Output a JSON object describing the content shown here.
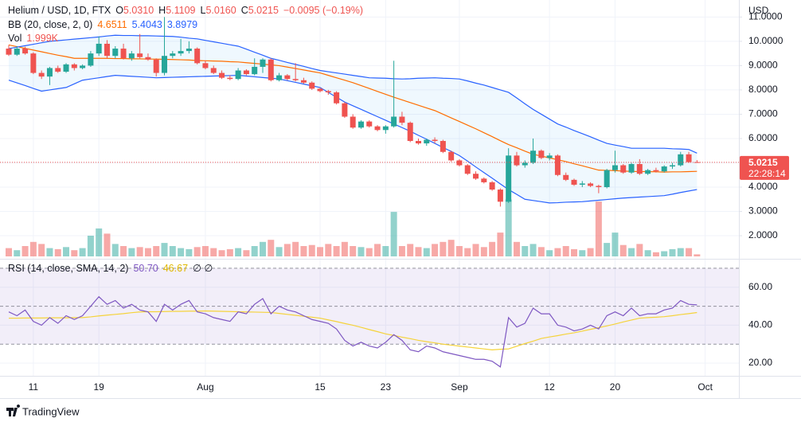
{
  "chart_data": {
    "type": "candlestick",
    "header": {
      "symbol": "Helium / USD, 1D, FTX",
      "ohlc": [
        {
          "label": "O",
          "value": "5.0310"
        },
        {
          "label": "H",
          "value": "5.1109"
        },
        {
          "label": "L",
          "value": "5.0160"
        },
        {
          "label": "C",
          "value": "5.0215"
        }
      ],
      "change": "−0.0095 (−0.19%)"
    },
    "currency": "USD",
    "last_price_label": "5.0215",
    "countdown": "22:28:14",
    "up_color": "#26a69a",
    "down_color": "#ef5350",
    "categories": [
      null,
      null,
      null,
      "11",
      null,
      null,
      null,
      null,
      null,
      null,
      null,
      "19",
      null,
      null,
      null,
      null,
      null,
      null,
      null,
      null,
      null,
      null,
      null,
      null,
      "Aug",
      null,
      null,
      null,
      null,
      null,
      null,
      null,
      null,
      null,
      null,
      null,
      null,
      null,
      "15",
      null,
      null,
      null,
      null,
      null,
      null,
      null,
      "23",
      null,
      null,
      null,
      null,
      null,
      null,
      null,
      null,
      "Sep",
      null,
      null,
      null,
      null,
      null,
      null,
      null,
      null,
      null,
      null,
      "12",
      null,
      null,
      null,
      null,
      null,
      null,
      null,
      "20",
      null,
      null,
      null,
      null,
      null,
      null,
      null,
      null,
      null,
      null,
      "Oct"
    ],
    "open": [
      9.7,
      9.45,
      9.7,
      9.5,
      8.7,
      8.55,
      8.9,
      8.75,
      9.05,
      8.9,
      9.0,
      9.5,
      9.9,
      9.4,
      9.7,
      9.3,
      9.5,
      9.35,
      9.25,
      8.7,
      9.4,
      9.5,
      9.6,
      9.7,
      9.1,
      8.9,
      8.7,
      8.5,
      8.45,
      8.8,
      8.65,
      8.95,
      9.25,
      8.4,
      8.6,
      8.45,
      8.4,
      8.3,
      8.05,
      7.95,
      7.9,
      7.45,
      6.9,
      6.45,
      6.7,
      6.5,
      6.35,
      6.5,
      6.9,
      6.65,
      5.9,
      5.8,
      5.95,
      5.9,
      5.45,
      5.1,
      4.9,
      4.55,
      4.35,
      4.2,
      3.9,
      3.4,
      5.3,
      4.9,
      5.0,
      5.5,
      5.2,
      5.3,
      4.5,
      4.3,
      4.1,
      4.15,
      4.05,
      4.0,
      4.7,
      4.9,
      4.6,
      4.95,
      4.55,
      4.7,
      4.65,
      4.85,
      4.9,
      5.35,
      5.031,
      null
    ],
    "high": [
      9.85,
      9.8,
      9.78,
      9.55,
      8.8,
      8.95,
      9.0,
      9.1,
      9.1,
      9.05,
      9.6,
      10.2,
      10.05,
      9.8,
      9.9,
      9.6,
      10.3,
      9.5,
      9.3,
      11.0,
      9.6,
      10.1,
      10.0,
      9.75,
      9.2,
      9.0,
      8.8,
      8.6,
      8.9,
      8.85,
      9.3,
      9.3,
      9.3,
      8.7,
      8.65,
      9.1,
      8.5,
      8.35,
      8.1,
      8.0,
      7.95,
      7.5,
      7.0,
      6.75,
      6.75,
      6.55,
      6.55,
      9.2,
      7.1,
      6.7,
      6.0,
      6.0,
      6.05,
      5.95,
      5.5,
      5.15,
      4.95,
      4.65,
      4.4,
      4.25,
      3.95,
      5.6,
      5.45,
      5.1,
      6.0,
      5.55,
      5.4,
      5.35,
      4.6,
      4.35,
      4.25,
      4.2,
      4.1,
      4.75,
      5.5,
      4.95,
      5.0,
      5.15,
      4.75,
      4.8,
      4.9,
      5.0,
      5.45,
      5.45,
      5.1109,
      null
    ],
    "low": [
      9.4,
      9.4,
      9.45,
      8.65,
      8.45,
      8.2,
      8.7,
      8.7,
      8.8,
      8.85,
      8.95,
      9.4,
      9.3,
      9.3,
      9.25,
      9.2,
      9.3,
      9.2,
      8.55,
      8.6,
      9.3,
      9.4,
      9.5,
      9.05,
      8.85,
      8.65,
      8.45,
      8.4,
      8.4,
      8.6,
      8.6,
      8.7,
      8.35,
      8.35,
      8.4,
      8.35,
      8.25,
      8.0,
      7.9,
      7.8,
      7.4,
      6.85,
      6.4,
      6.4,
      6.45,
      6.3,
      6.2,
      6.45,
      6.55,
      5.85,
      5.75,
      5.7,
      5.8,
      5.4,
      5.05,
      4.85,
      4.5,
      4.3,
      4.15,
      3.85,
      3.2,
      3.35,
      4.85,
      4.8,
      4.95,
      5.15,
      5.1,
      4.45,
      4.25,
      4.05,
      4.0,
      4.0,
      3.75,
      3.95,
      4.6,
      4.55,
      4.55,
      4.5,
      4.5,
      4.6,
      4.6,
      4.75,
      4.85,
      5.0,
      5.016,
      null
    ],
    "close": [
      9.45,
      9.7,
      9.5,
      8.7,
      8.55,
      8.9,
      8.75,
      9.05,
      8.9,
      9.0,
      9.5,
      9.9,
      9.4,
      9.7,
      9.3,
      9.5,
      9.35,
      9.25,
      8.7,
      9.4,
      9.5,
      9.6,
      9.7,
      9.1,
      8.9,
      8.7,
      8.5,
      8.45,
      8.8,
      8.65,
      8.95,
      9.25,
      8.4,
      8.6,
      8.45,
      8.4,
      8.3,
      8.05,
      7.95,
      7.9,
      7.45,
      6.9,
      6.45,
      6.7,
      6.5,
      6.35,
      6.5,
      6.9,
      6.65,
      5.9,
      5.8,
      5.95,
      5.9,
      5.45,
      5.1,
      4.9,
      4.55,
      4.35,
      4.2,
      3.9,
      3.4,
      5.3,
      4.9,
      5.0,
      5.5,
      5.2,
      5.3,
      4.5,
      4.3,
      4.1,
      4.15,
      4.05,
      4.0,
      4.7,
      4.9,
      4.6,
      4.95,
      4.55,
      4.7,
      4.65,
      4.85,
      4.9,
      5.35,
      5.03,
      5.0215,
      null
    ],
    "ylim": [
      1.15,
      11.7
    ],
    "yticks": [
      {
        "value": 2,
        "label": "2.0000"
      },
      {
        "value": 3,
        "label": "3.0000"
      },
      {
        "value": 4,
        "label": "4.0000"
      },
      {
        "value": 5,
        "label": "5.0000"
      },
      {
        "value": 6,
        "label": "6.0000"
      },
      {
        "value": 7,
        "label": "7.0000"
      },
      {
        "value": 8,
        "label": "8.0000"
      },
      {
        "value": 9,
        "label": "9.0000"
      },
      {
        "value": 10,
        "label": "10.0000"
      },
      {
        "value": 11,
        "label": "11.0000"
      }
    ],
    "grid": true,
    "bollinger": {
      "label": "BB (20, close, 2, 0)",
      "legend_values": [
        "4.6511",
        "5.4043",
        "3.8979"
      ],
      "fill": "rgba(33,150,243,0.07)",
      "basis": {
        "color": "#ff6d00",
        "values": [
          9.85,
          9.78,
          9.71,
          9.64,
          9.57,
          9.5,
          9.43,
          9.37,
          9.3,
          9.3,
          9.3,
          9.3,
          9.3,
          9.29,
          9.29,
          9.28,
          9.28,
          9.27,
          9.27,
          9.26,
          9.25,
          9.24,
          9.23,
          9.21,
          9.2,
          9.19,
          9.18,
          9.16,
          9.15,
          9.12,
          9.09,
          9.06,
          9.03,
          9.0,
          8.94,
          8.88,
          8.82,
          8.76,
          8.7,
          8.6,
          8.5,
          8.4,
          8.3,
          8.18,
          8.06,
          7.94,
          7.82,
          7.7,
          7.59,
          7.48,
          7.37,
          7.26,
          7.15,
          7.0,
          6.85,
          6.7,
          6.55,
          6.4,
          6.24,
          6.08,
          5.91,
          5.75,
          5.62,
          5.48,
          5.35,
          5.28,
          5.2,
          5.13,
          5.05,
          4.96,
          4.88,
          4.79,
          4.7,
          4.69,
          4.68,
          4.66,
          4.65,
          4.64,
          4.64,
          4.63,
          4.62,
          4.63,
          4.63,
          4.64,
          4.65,
          null
        ]
      },
      "upper": {
        "color": "#2962ff",
        "values": [
          9.7,
          9.76,
          9.82,
          9.88,
          9.94,
          10.0,
          10.03,
          10.06,
          10.09,
          10.12,
          10.15,
          10.18,
          10.22,
          10.25,
          10.24,
          10.24,
          10.23,
          10.23,
          10.22,
          10.21,
          10.2,
          10.17,
          10.13,
          10.1,
          10.04,
          9.98,
          9.92,
          9.86,
          9.8,
          9.68,
          9.55,
          9.43,
          9.3,
          9.22,
          9.13,
          9.05,
          8.97,
          8.88,
          8.8,
          8.75,
          8.7,
          8.65,
          8.6,
          8.55,
          8.5,
          8.49,
          8.48,
          8.46,
          8.45,
          8.46,
          8.48,
          8.49,
          8.5,
          8.48,
          8.47,
          8.45,
          8.37,
          8.28,
          8.2,
          8.1,
          8.0,
          7.9,
          7.67,
          7.43,
          7.2,
          7.0,
          6.8,
          6.6,
          6.47,
          6.33,
          6.2,
          6.07,
          5.93,
          5.8,
          5.73,
          5.67,
          5.6,
          5.6,
          5.6,
          5.6,
          5.6,
          5.58,
          5.57,
          5.55,
          5.4,
          null
        ]
      },
      "lower": {
        "color": "#2962ff",
        "values": [
          8.4,
          8.29,
          8.18,
          8.06,
          7.95,
          8.0,
          8.05,
          8.1,
          8.25,
          8.4,
          8.45,
          8.5,
          8.55,
          8.6,
          8.58,
          8.56,
          8.54,
          8.52,
          8.5,
          8.51,
          8.52,
          8.53,
          8.54,
          8.55,
          8.56,
          8.57,
          8.58,
          8.59,
          8.6,
          8.57,
          8.54,
          8.51,
          8.48,
          8.45,
          8.38,
          8.31,
          8.24,
          8.17,
          8.1,
          7.9,
          7.7,
          7.5,
          7.35,
          7.2,
          7.05,
          6.9,
          6.75,
          6.6,
          6.45,
          6.3,
          6.13,
          5.97,
          5.8,
          5.63,
          5.47,
          5.3,
          5.07,
          4.83,
          4.6,
          4.37,
          4.13,
          3.9,
          3.7,
          3.5,
          3.45,
          3.4,
          3.35,
          3.36,
          3.38,
          3.39,
          3.4,
          3.43,
          3.46,
          3.49,
          3.52,
          3.55,
          3.57,
          3.59,
          3.61,
          3.63,
          3.65,
          3.71,
          3.78,
          3.84,
          3.9,
          null
        ]
      }
    },
    "volume": {
      "label": "Vol",
      "legend_value": "1.999K",
      "ylim": [
        0,
        100
      ],
      "up_color": "rgba(38,166,154,0.5)",
      "down_color": "rgba(239,83,80,0.5)",
      "values": [
        8,
        6,
        10,
        14,
        12,
        8,
        7,
        9,
        6,
        8,
        20,
        27,
        22,
        12,
        10,
        8,
        9,
        8,
        10,
        13,
        10,
        8,
        7,
        9,
        10,
        8,
        6,
        7,
        8,
        6,
        10,
        14,
        16,
        9,
        12,
        14,
        10,
        11,
        9,
        12,
        10,
        14,
        10,
        9,
        8,
        12,
        10,
        43,
        10,
        12,
        9,
        8,
        12,
        14,
        16,
        10,
        8,
        12,
        9,
        14,
        23,
        55,
        14,
        10,
        12,
        9,
        6,
        8,
        10,
        7,
        6,
        8,
        53,
        13,
        23,
        11,
        8,
        12,
        6,
        4,
        5,
        7,
        8,
        8,
        1.999,
        null
      ]
    },
    "rsi": {
      "label": "RSI (14, close, SMA, 14, 2)",
      "legend_values": [
        "50.70",
        "46.67"
      ],
      "legend_extra": "∅ ∅",
      "ylim": [
        13.3,
        73.75
      ],
      "yticks": [
        {
          "value": 20,
          "label": "20.00"
        },
        {
          "value": 40,
          "label": "40.00"
        },
        {
          "value": 60,
          "label": "60.00"
        }
      ],
      "bands": [
        70,
        50,
        30
      ],
      "band_fill": "rgba(126,87,194,0.1)",
      "line": {
        "color": "#7e57c2",
        "values": [
          47,
          45,
          48,
          42,
          40,
          44,
          41,
          45,
          43,
          45,
          50,
          55,
          51,
          53,
          49,
          51,
          48,
          47,
          42,
          51,
          48,
          51,
          53,
          47,
          46,
          44,
          43,
          42,
          47,
          46,
          51,
          54,
          46,
          50,
          48,
          47,
          45,
          43,
          42,
          41,
          38,
          32,
          29,
          31,
          29,
          28,
          31,
          35,
          32,
          27,
          26,
          29,
          28,
          26,
          25,
          24,
          23,
          22,
          22,
          21,
          18,
          44,
          39,
          41,
          49,
          46,
          46,
          40,
          39,
          37,
          38,
          40,
          38,
          45,
          47,
          45,
          49,
          45,
          46,
          46,
          48,
          49,
          53,
          51,
          50.7,
          null
        ]
      },
      "sma": {
        "color": "#f5d33b",
        "values": [
          43.7,
          43.7,
          43.8,
          43.8,
          43.8,
          43.9,
          43.9,
          43.9,
          44.0,
          44.0,
          44.4,
          44.9,
          45.3,
          45.7,
          46.1,
          46.6,
          47.0,
          47.1,
          47.1,
          47.2,
          47.3,
          47.3,
          47.4,
          47.4,
          47.5,
          47.4,
          47.3,
          47.2,
          47.1,
          47.0,
          46.9,
          46.8,
          46.7,
          46.2,
          45.7,
          45.2,
          44.7,
          44.2,
          43.7,
          42.8,
          41.9,
          40.9,
          40.0,
          38.9,
          37.7,
          36.6,
          35.4,
          34.6,
          33.7,
          32.9,
          32.0,
          31.3,
          30.7,
          30.0,
          29.5,
          29.0,
          28.5,
          28.0,
          27.5,
          27.0,
          27.3,
          27.5,
          28.9,
          30.3,
          31.6,
          33.0,
          33.8,
          34.5,
          35.3,
          36.0,
          36.9,
          37.8,
          38.7,
          39.6,
          40.6,
          41.7,
          42.7,
          43.7,
          44.0,
          44.2,
          44.5,
          45.0,
          45.6,
          46.1,
          46.67,
          null
        ]
      }
    },
    "brand": "TradingView"
  }
}
